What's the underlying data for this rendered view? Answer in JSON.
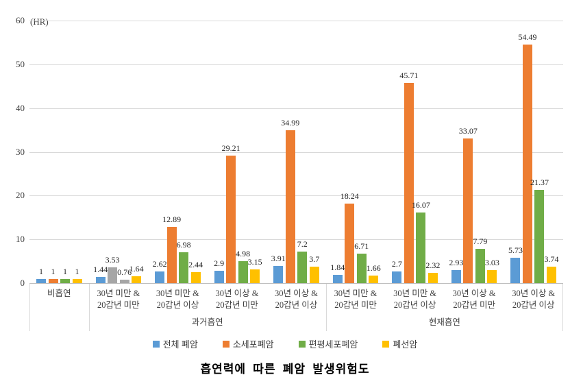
{
  "chart_data": {
    "type": "bar",
    "title": "흡연력에 따른 폐암 발생위험도",
    "legend_position": "bottom",
    "grid": true,
    "y_axis": {
      "unit": "(HR)",
      "min": 0,
      "max": 60,
      "step": 10,
      "ticks": [
        "0",
        "10",
        "20",
        "30",
        "40",
        "50",
        "60"
      ]
    },
    "series": [
      {
        "name": "전체 폐암",
        "color": "#5B9BD5"
      },
      {
        "name": "소세포폐암",
        "color": "#ED7D31"
      },
      {
        "name": "편평세포폐암",
        "color": "#70AD47"
      },
      {
        "name": "폐선암",
        "color": "#FFC000"
      }
    ],
    "muted_bar_color": "#A6A6A6",
    "parents": [
      {
        "label": "",
        "span": 1
      },
      {
        "label": "과거흡연",
        "span": 4
      },
      {
        "label": "현재흡연",
        "span": 4
      }
    ],
    "groups": [
      {
        "label": "비흡연",
        "parent": "",
        "values": [
          "1",
          "1",
          "1",
          "1"
        ],
        "muted_series": []
      },
      {
        "label": "30년 미만 &\n20갑년 미만",
        "parent": "과거흡연",
        "values": [
          "1.44",
          "3.53",
          "0.76",
          "1.64"
        ],
        "muted_series": [
          1,
          2
        ]
      },
      {
        "label": "30년 미만 &\n20갑년 이상",
        "parent": "과거흡연",
        "values": [
          "2.62",
          "12.89",
          "6.98",
          "2.44"
        ],
        "muted_series": []
      },
      {
        "label": "30년 이상 &\n20갑년 미만",
        "parent": "과거흡연",
        "values": [
          "2.9",
          "29.21",
          "4.98",
          "3.15"
        ],
        "muted_series": []
      },
      {
        "label": "30년 이상 &\n20갑년 이상",
        "parent": "과거흡연",
        "values": [
          "3.91",
          "34.99",
          "7.2",
          "3.7"
        ],
        "muted_series": []
      },
      {
        "label": "30년 미만 &\n20갑년 미만",
        "parent": "현재흡연",
        "values": [
          "1.84",
          "18.24",
          "6.71",
          "1.66"
        ],
        "muted_series": []
      },
      {
        "label": "30년 미만 &\n20갑년 이상",
        "parent": "현재흡연",
        "values": [
          "2.7",
          "45.71",
          "16.07",
          "2.32"
        ],
        "muted_series": []
      },
      {
        "label": "30년 이상 &\n20갑년 미만",
        "parent": "현재흡연",
        "values": [
          "2.93",
          "33.07",
          "7.79",
          "3.03"
        ],
        "muted_series": []
      },
      {
        "label": "30년 이상 &\n20갑년 이상",
        "parent": "현재흡연",
        "values": [
          "5.73",
          "54.49",
          "21.37",
          "3.74"
        ],
        "muted_series": []
      }
    ]
  },
  "colors": {
    "gridline": "#D9D9D9",
    "axis_line": "#BFBFBF",
    "tick_text": "#404040",
    "value_text": "#262626",
    "background": "#FFFFFF"
  }
}
